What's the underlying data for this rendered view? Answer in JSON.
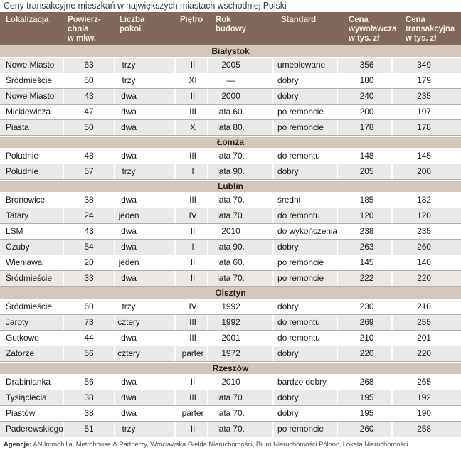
{
  "title": "Ceny transakcyjne mieszkań w największych miastach wschodniej Polski",
  "colors": {
    "header_bg": "#80695a",
    "header_text": "#f3ede5",
    "section_bg": "#d2c7ba",
    "row_gray": "#ebe9e7",
    "divider": "#b2afab"
  },
  "columns": [
    {
      "key": "lokalizacja",
      "label": "Lokalizacja"
    },
    {
      "key": "powierzchnia",
      "label": "Powierz-\nchnia\nw mkw."
    },
    {
      "key": "liczba-pokoi",
      "label": "Liczba\npokoi"
    },
    {
      "key": "pietro",
      "label": "Piętro"
    },
    {
      "key": "rok-budowy",
      "label": "Rok\nbudowy"
    },
    {
      "key": "standard",
      "label": "Standard"
    },
    {
      "key": "cena-wywolawcza",
      "label": "Cena\nwywoławcza\nw tys. zł"
    },
    {
      "key": "cena-transakcyjna",
      "label": "Cena\ntransakcyjna\nw tys. zł"
    }
  ],
  "sections": [
    {
      "city": "Białystok",
      "rows": [
        [
          "Nowe Miasto",
          "63",
          "trzy",
          "II",
          "2005",
          "umeblowane",
          "356",
          "349"
        ],
        [
          "Śródmieście",
          "50",
          "trzy",
          "XI",
          "—",
          "dobry",
          "180",
          "179"
        ],
        [
          "Nowe Miasto",
          "43",
          "dwa",
          "II",
          "2000",
          "dobry",
          "240",
          "235"
        ],
        [
          "Mickiewicza",
          "47",
          "dwa",
          "III",
          "lata 60.",
          "po remoncie",
          "200",
          "197"
        ],
        [
          "Piasta",
          "50",
          "dwa",
          "X",
          "lata 80.",
          "po remoncie",
          "178",
          "178"
        ]
      ]
    },
    {
      "city": "Łomża",
      "rows": [
        [
          "Południe",
          "48",
          "dwa",
          "III",
          "lata 70.",
          "do remontu",
          "148",
          "145"
        ],
        [
          "Południe",
          "57",
          "trzy",
          "I",
          "lata 90.",
          "dobry",
          "205",
          "200"
        ]
      ]
    },
    {
      "city": "Lublin",
      "rows": [
        [
          "Bronowice",
          "38",
          "dwa",
          "III",
          "lata 70.",
          "średni",
          "185",
          "182"
        ],
        [
          "Tatary",
          "24",
          "jeden",
          "IV",
          "lata 70.",
          "do remontu",
          "120",
          "120"
        ],
        [
          "LSM",
          "43",
          "dwa",
          "II",
          "2010",
          "do wykończenia",
          "238",
          "235"
        ],
        [
          "Czuby",
          "54",
          "dwa",
          "I",
          "lata 90.",
          "dobry",
          "263",
          "260"
        ],
        [
          "Wieniawa",
          "20",
          "jeden",
          "II",
          "lata 60.",
          "po remoncie",
          "145",
          "140"
        ],
        [
          "Śródmieście",
          "33",
          "dwa",
          "II",
          "lata 70.",
          "po remoncie",
          "222",
          "220"
        ]
      ]
    },
    {
      "city": "Olsztyn",
      "rows": [
        [
          "Śródmieście",
          "60",
          "trzy",
          "IV",
          "1992",
          "dobry",
          "230",
          "210"
        ],
        [
          "Jaroty",
          "73",
          "cztery",
          "III",
          "1992",
          "do remontu",
          "269",
          "255"
        ],
        [
          "Gutkowo",
          "44",
          "dwa",
          "III",
          "2001",
          "do remontu",
          "210",
          "201"
        ],
        [
          "Zatorze",
          "56",
          "cztery",
          "parter",
          "1972",
          "dobry",
          "220",
          "220"
        ]
      ]
    },
    {
      "city": "Rzeszów",
      "rows": [
        [
          "Drabinianka",
          "56",
          "dwa",
          "II",
          "2010",
          "bardzo dobry",
          "268",
          "265"
        ],
        [
          "Tysiąclecia",
          "38",
          "dwa",
          "III",
          "lata 70.",
          "dobry",
          "195",
          "192"
        ],
        [
          "Piastów",
          "38",
          "dwa",
          "parter",
          "lata 70.",
          "dobry",
          "195",
          "190"
        ],
        [
          "Paderewskiego",
          "51",
          "trzy",
          "II",
          "lata 70.",
          "po remoncie",
          "260",
          "258"
        ]
      ]
    }
  ],
  "footer": {
    "label": "Agencje:",
    "text": " AN Immobilia, Metrohouse & Partnerzy, Wrocławska Giełda Nieruchomości, Biuro Nieruchomości Północ, Lokata Nieruchomości."
  }
}
